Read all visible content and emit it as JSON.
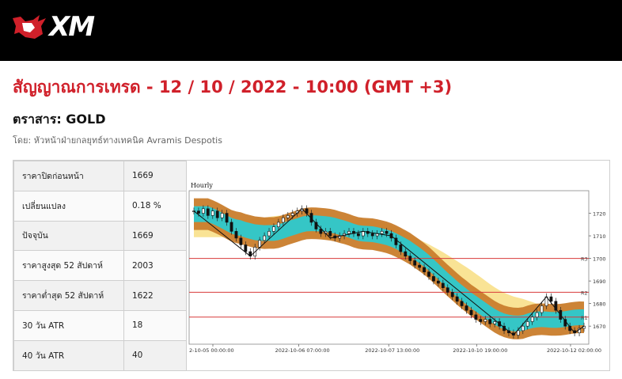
{
  "brand": {
    "logo_text": "XM",
    "icon": "xm-bull-logo-icon"
  },
  "header": {
    "title": "สัญญาณการเทรด - 12 / 10 / 2022 - 10:00 (GMT +3)",
    "instrument": "ตราสาร: GOLD",
    "author": "โดย: หัวหน้าฝ่ายกลยุทธ์ทางเทคนิค Avramis Despotis"
  },
  "stats": [
    {
      "label": "ราคาปิดก่อนหน้า",
      "value": "1669"
    },
    {
      "label": "เปลี่ยนแปลง",
      "value": "0.18 %"
    },
    {
      "label": "ปัจจุบัน",
      "value": "1669"
    },
    {
      "label": "ราคาสูงสุด 52 สัปดาห์",
      "value": "2003"
    },
    {
      "label": "ราคาต่ำสุด 52 สัปดาห์",
      "value": "1622"
    },
    {
      "label": "30 วัน ATR",
      "value": "18"
    },
    {
      "label": "40 วัน ATR",
      "value": "40"
    }
  ],
  "colors": {
    "brand_red": "#d0202a",
    "band_outer": "#c97d2c",
    "band_inner": "#35c6c6",
    "ma_band": "#f8e08a",
    "level_line": "#d83a3a"
  },
  "chart_data": {
    "type": "candlestick",
    "timeframe": "Hourly",
    "x_tick_labels": [
      "2-10-05 00:00:00",
      "2022-10-06 07:00:00",
      "2022-10-07 13:00:00",
      "2022-10-10 19:00:00",
      "2022-10-12 02:00:00"
    ],
    "y_ticks": [
      1670,
      1680,
      1690,
      1700,
      1710,
      1720
    ],
    "ylim": [
      1662,
      1730
    ],
    "levels": [
      {
        "name": "R3",
        "value": 1700
      },
      {
        "name": "R2",
        "value": 1685
      },
      {
        "name": "R1",
        "value": 1674
      }
    ],
    "close": [
      1721,
      1720,
      1722,
      1719,
      1721,
      1718,
      1720,
      1716,
      1712,
      1709,
      1706,
      1703,
      1701,
      1705,
      1708,
      1710,
      1712,
      1714,
      1716,
      1718,
      1719,
      1720,
      1721,
      1722,
      1720,
      1716,
      1713,
      1711,
      1712,
      1710,
      1709,
      1710,
      1711,
      1712,
      1711,
      1710,
      1712,
      1711,
      1710,
      1711,
      1712,
      1711,
      1709,
      1706,
      1703,
      1701,
      1699,
      1697,
      1696,
      1694,
      1692,
      1690,
      1689,
      1687,
      1685,
      1683,
      1681,
      1679,
      1677,
      1675,
      1673,
      1672,
      1673,
      1671,
      1672,
      1670,
      1668,
      1667,
      1666,
      1668,
      1670,
      1672,
      1674,
      1676,
      1679,
      1683,
      1681,
      1677,
      1673,
      1670,
      1668,
      1667,
      1669,
      1670
    ],
    "zigzag": [
      1721,
      1701,
      1722,
      1709,
      1712,
      1710,
      1666,
      1683,
      1667,
      1670
    ]
  }
}
